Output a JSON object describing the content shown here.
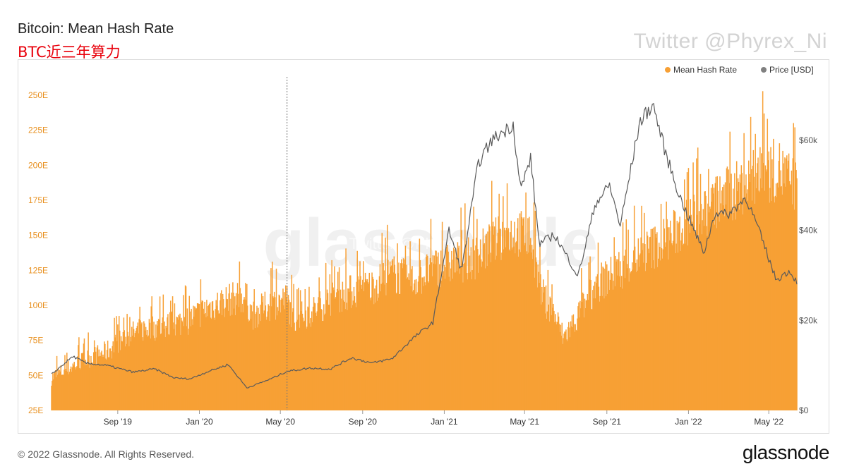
{
  "header": {
    "title": "Bitcoin: Mean Hash Rate",
    "subtitle": "BTC近三年算力",
    "handle": "Twitter @Phyrex_Ni"
  },
  "watermarks": {
    "brand": "glassnode",
    "handle": "Twitter @Phyrex_Ni"
  },
  "footer": {
    "copyright": "© 2022 Glassnode. All Rights Reserved.",
    "logo": "glassnode"
  },
  "colors": {
    "hash": "#f7a035",
    "hash_label": "#e8901f",
    "price": "#5a5a5a",
    "legend_price": "#808080",
    "subtitle": "#e8000b"
  },
  "chart_data": {
    "type": "bar",
    "title": "Bitcoin: Mean Hash Rate",
    "legend": [
      {
        "label": "Mean Hash Rate",
        "color": "#f7a035"
      },
      {
        "label": "Price [USD]",
        "color": "#808080"
      }
    ],
    "legend_position": "top-right",
    "grid": false,
    "x_ticks": [
      "Sep '19",
      "Jan '20",
      "May '20",
      "Sep '20",
      "Jan '21",
      "May '21",
      "Sep '21",
      "Jan '22",
      "May '22"
    ],
    "x_tick_dates": [
      "2019-09-01",
      "2020-01-01",
      "2020-05-01",
      "2020-09-01",
      "2021-01-01",
      "2021-05-01",
      "2021-09-01",
      "2022-01-01",
      "2022-05-01"
    ],
    "x_range": [
      "2019-05-25",
      "2022-06-12"
    ],
    "y_left": {
      "label": "Mean Hash Rate",
      "unit": "E",
      "ylim": [
        25,
        250
      ],
      "ticks": [
        "25E",
        "50E",
        "75E",
        "100E",
        "125E",
        "150E",
        "175E",
        "200E",
        "225E",
        "250E"
      ]
    },
    "y_right": {
      "label": "Price [USD]",
      "ylim": [
        0,
        70000
      ],
      "ticks": [
        "$0",
        "$20k",
        "$40k",
        "$60k"
      ]
    },
    "vertical_marker": "2020-05-11",
    "series": [
      {
        "name": "Mean Hash Rate",
        "type": "bar",
        "axis": "left",
        "dates": [
          "2019-05-25",
          "2019-06-15",
          "2019-07-15",
          "2019-08-15",
          "2019-09-15",
          "2019-10-15",
          "2019-11-15",
          "2019-12-15",
          "2020-01-15",
          "2020-02-15",
          "2020-03-10",
          "2020-03-20",
          "2020-04-15",
          "2020-05-11",
          "2020-05-20",
          "2020-06-15",
          "2020-07-15",
          "2020-08-15",
          "2020-09-15",
          "2020-10-15",
          "2020-11-15",
          "2020-12-15",
          "2021-01-15",
          "2021-02-15",
          "2021-03-15",
          "2021-04-15",
          "2021-05-10",
          "2021-05-25",
          "2021-06-15",
          "2021-06-28",
          "2021-07-15",
          "2021-08-15",
          "2021-09-15",
          "2021-10-15",
          "2021-11-15",
          "2021-12-15",
          "2022-01-15",
          "2022-02-15",
          "2022-03-15",
          "2022-04-15",
          "2022-05-15",
          "2022-06-12"
        ],
        "values": [
          52,
          58,
          66,
          72,
          84,
          90,
          92,
          96,
          106,
          112,
          114,
          100,
          108,
          112,
          97,
          102,
          112,
          118,
          122,
          132,
          126,
          136,
          140,
          144,
          156,
          164,
          160,
          118,
          100,
          83,
          95,
          123,
          133,
          144,
          154,
          164,
          176,
          188,
          196,
          206,
          212,
          197
        ]
      },
      {
        "name": "Price [USD]",
        "type": "line",
        "axis": "right",
        "dates": [
          "2019-05-25",
          "2019-06-26",
          "2019-07-15",
          "2019-08-15",
          "2019-09-24",
          "2019-10-26",
          "2019-11-25",
          "2019-12-18",
          "2020-01-15",
          "2020-02-13",
          "2020-03-12",
          "2020-04-15",
          "2020-05-11",
          "2020-06-15",
          "2020-07-15",
          "2020-08-15",
          "2020-09-15",
          "2020-10-15",
          "2020-11-15",
          "2020-12-15",
          "2021-01-08",
          "2021-01-27",
          "2021-02-21",
          "2021-03-13",
          "2021-04-14",
          "2021-04-25",
          "2021-05-10",
          "2021-05-23",
          "2021-06-15",
          "2021-07-20",
          "2021-08-15",
          "2021-09-05",
          "2021-09-21",
          "2021-10-20",
          "2021-11-09",
          "2021-11-28",
          "2021-12-20",
          "2022-01-24",
          "2022-02-10",
          "2022-03-01",
          "2022-03-28",
          "2022-04-15",
          "2022-05-12",
          "2022-06-01",
          "2022-06-12"
        ],
        "values": [
          8000,
          12000,
          10500,
          10000,
          8500,
          9200,
          7200,
          7000,
          8700,
          10200,
          5000,
          6900,
          8700,
          9400,
          9200,
          11700,
          10500,
          11500,
          16000,
          19500,
          40000,
          31000,
          55000,
          60000,
          63500,
          49000,
          56000,
          37000,
          39000,
          29800,
          46000,
          50000,
          41000,
          64000,
          68000,
          57000,
          47000,
          35000,
          44000,
          43500,
          47300,
          40500,
          29000,
          31000,
          28500
        ]
      }
    ]
  }
}
